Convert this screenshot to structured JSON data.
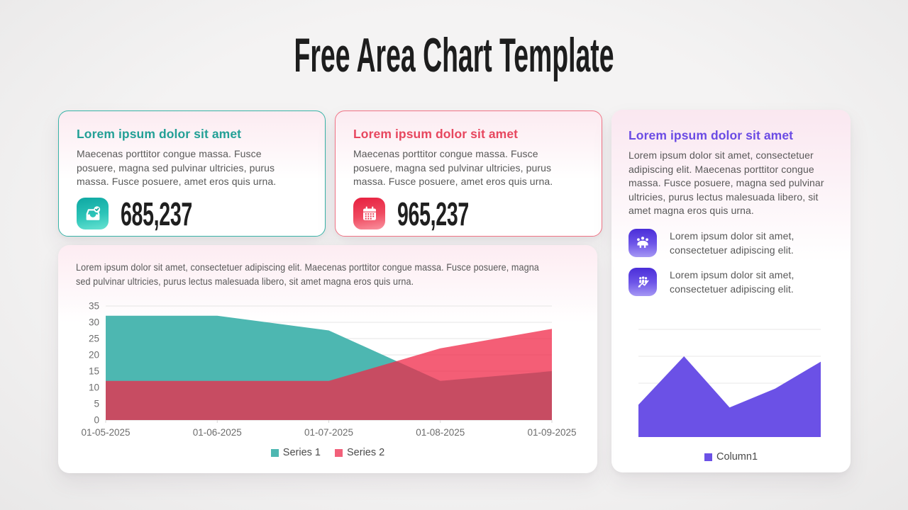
{
  "title": "Free Area Chart Template",
  "stat_cards": [
    {
      "heading": "Lorem ipsum dolor sit amet",
      "body": "Maecenas porttitor congue massa. Fusce posuere, magna sed pulvinar ultricies, purus massa. Fusce posuere, amet eros quis urna.",
      "value": "685,237",
      "icon": "inbox-check-icon",
      "accent_color": "#23a096",
      "border_color": "#39b3a8"
    },
    {
      "heading": "Lorem ipsum dolor sit amet",
      "body": "Maecenas porttitor congue massa. Fusce posuere, magna sed pulvinar ultricies, purus massa. Fusce posuere, amet eros quis urna.",
      "value": "965,237",
      "icon": "calendar-icon",
      "accent_color": "#e7475f",
      "border_color": "#f07385"
    }
  ],
  "info_card": {
    "heading": "Lorem ipsum dolor sit amet",
    "accent_color": "#6b4be4",
    "body": "Lorem ipsum dolor sit amet, consectetuer adipiscing elit. Maecenas porttitor congue massa. Fusce posuere, magna sed pulvinar ultricies, purus lectus malesuada libero, sit amet magna eros quis urna.",
    "features": [
      {
        "icon": "meeting-icon",
        "text": "Lorem ipsum dolor sit amet, consectetuer adipiscing elit."
      },
      {
        "icon": "team-growth-icon",
        "text": "Lorem ipsum dolor sit amet, consectetuer adipiscing elit."
      }
    ]
  },
  "chart_card": {
    "description": "Lorem ipsum dolor sit amet, consectetuer adipiscing elit. Maecenas porttitor congue massa. Fusce posuere, magna sed pulvinar ultricies, purus lectus malesuada libero, sit amet magna eros quis urna."
  },
  "chart_data": [
    {
      "type": "area",
      "x": [
        "01-05-2025",
        "01-06-2025",
        "01-07-2025",
        "01-08-2025",
        "01-09-2025"
      ],
      "series": [
        {
          "name": "Series 1",
          "values": [
            32,
            32,
            27.5,
            12,
            15
          ],
          "color": "#4db7b1",
          "fill": "#4db7b1",
          "fill_opacity": 1
        },
        {
          "name": "Series 2",
          "values": [
            12,
            12,
            12,
            22,
            28
          ],
          "color": "#f2607a",
          "fill": "#f02848",
          "fill_opacity": 0.75
        }
      ],
      "ylim": [
        0,
        35
      ],
      "ytick_step": 5,
      "grid": true,
      "legend_position": "bottom",
      "overlapping": true
    },
    {
      "type": "area",
      "series": [
        {
          "name": "Column1",
          "values": [
            1.2,
            3,
            1.1,
            1.8,
            2.8
          ],
          "color": "#6b51e6",
          "fill": "#6b51e6",
          "fill_opacity": 1
        }
      ],
      "ylim": [
        0,
        4
      ],
      "ytick_step": 1,
      "grid": true,
      "legend_position": "bottom",
      "axis_labels_shown": false
    }
  ]
}
